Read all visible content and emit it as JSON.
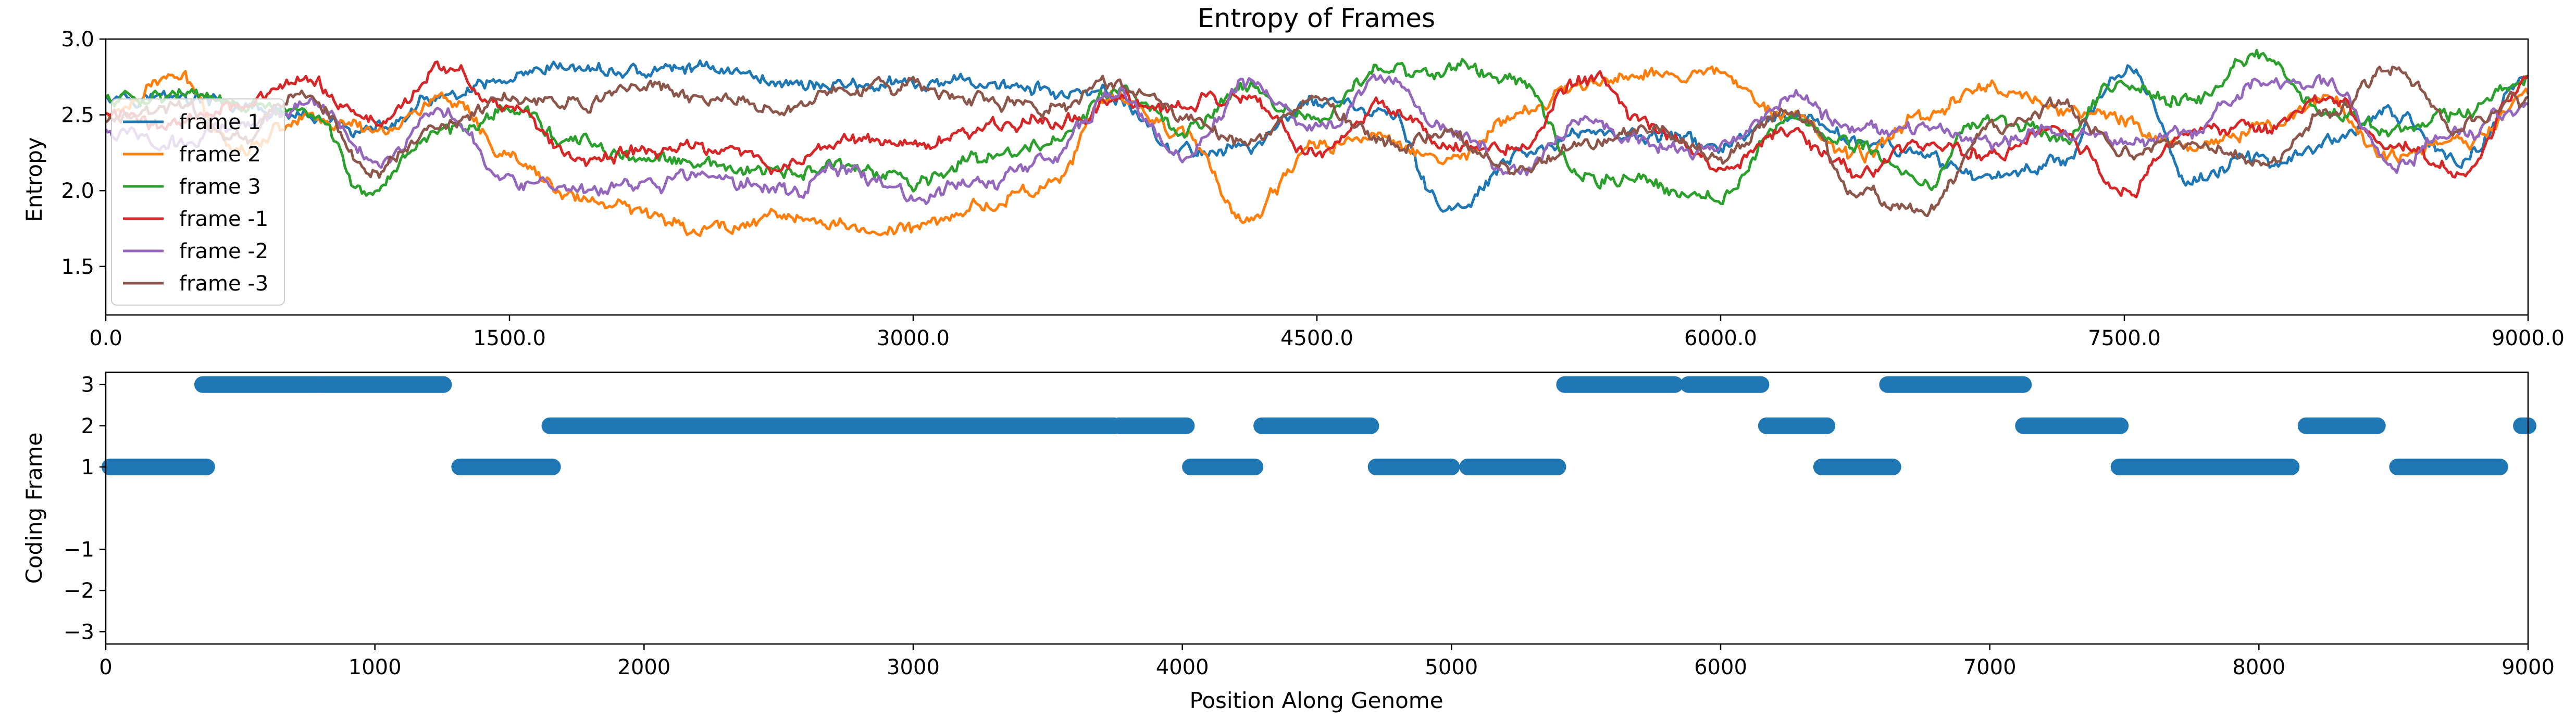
{
  "chart_data": [
    {
      "type": "line",
      "title": "Entropy of Frames",
      "xlabel": "",
      "ylabel": "Entropy",
      "xlim": [
        0,
        9000
      ],
      "ylim": [
        1.18,
        3.0
      ],
      "xticks": [
        0,
        1500,
        3000,
        4500,
        6000,
        7500,
        9000
      ],
      "xtick_labels": [
        "0.0",
        "1500.0",
        "3000.0",
        "4500.0",
        "6000.0",
        "7500.0",
        "9000.0"
      ],
      "yticks": [
        1.5,
        2.0,
        2.5,
        3.0
      ],
      "ytick_labels": [
        "1.5",
        "2.0",
        "2.5",
        "3.0"
      ],
      "legend_position": "upper-left",
      "grid": false,
      "series": [
        {
          "name": "frame 1",
          "color": "#1f77b4",
          "x": [
            0,
            250,
            500,
            750,
            1000,
            1250,
            1500,
            1750,
            2000,
            2250,
            2500,
            2750,
            3000,
            3250,
            3500,
            3750,
            4000,
            4250,
            4500,
            4750,
            5000,
            5250,
            5500,
            5750,
            6000,
            6250,
            6500,
            6750,
            7000,
            7250,
            7500,
            7750,
            8000,
            8250,
            8500,
            8750,
            9000
          ],
          "y": [
            2.65,
            2.62,
            2.55,
            2.45,
            2.4,
            2.6,
            2.7,
            2.8,
            2.78,
            2.82,
            2.72,
            2.7,
            2.68,
            2.72,
            2.65,
            2.6,
            2.25,
            2.3,
            2.6,
            2.5,
            1.85,
            2.2,
            2.4,
            2.35,
            2.3,
            2.45,
            2.35,
            2.2,
            2.1,
            2.2,
            2.8,
            2.1,
            2.2,
            2.3,
            2.5,
            2.2,
            2.75
          ]
        },
        {
          "name": "frame 2",
          "color": "#ff7f0e",
          "x": [
            0,
            250,
            500,
            750,
            1000,
            1250,
            1500,
            1750,
            2000,
            2250,
            2500,
            2750,
            3000,
            3250,
            3500,
            3750,
            4000,
            4250,
            4500,
            4750,
            5000,
            5250,
            5500,
            5750,
            6000,
            6250,
            6500,
            6750,
            7000,
            7250,
            7500,
            7750,
            8000,
            8250,
            8500,
            8750,
            9000
          ],
          "y": [
            2.5,
            2.75,
            2.3,
            2.5,
            2.4,
            2.6,
            2.2,
            1.95,
            1.85,
            1.75,
            1.85,
            1.75,
            1.75,
            1.9,
            2.05,
            2.6,
            2.4,
            1.8,
            2.3,
            2.35,
            2.2,
            2.5,
            2.7,
            2.8,
            2.75,
            2.55,
            2.2,
            2.5,
            2.7,
            2.55,
            2.45,
            2.3,
            2.4,
            2.6,
            2.2,
            2.3,
            2.65
          ]
        },
        {
          "name": "frame 3",
          "color": "#2ca02c",
          "x": [
            0,
            250,
            500,
            750,
            1000,
            1250,
            1500,
            1750,
            2000,
            2250,
            2500,
            2750,
            3000,
            3250,
            3500,
            3750,
            4000,
            4250,
            4500,
            4750,
            5000,
            5250,
            5500,
            5750,
            6000,
            6250,
            6500,
            6750,
            7000,
            7250,
            7500,
            7750,
            8000,
            8250,
            8500,
            8750,
            9000
          ],
          "y": [
            2.6,
            2.65,
            2.55,
            2.5,
            1.95,
            2.4,
            2.55,
            2.3,
            2.2,
            2.15,
            2.1,
            2.15,
            2.05,
            2.2,
            2.3,
            2.65,
            2.4,
            2.7,
            2.45,
            2.8,
            2.8,
            2.75,
            2.1,
            2.05,
            1.95,
            2.5,
            2.3,
            2.05,
            2.5,
            2.35,
            2.7,
            2.6,
            2.9,
            2.5,
            2.4,
            2.5,
            2.75
          ]
        },
        {
          "name": "frame -1",
          "color": "#d62728",
          "x": [
            0,
            250,
            500,
            750,
            1000,
            1250,
            1500,
            1750,
            2000,
            2250,
            2500,
            2750,
            3000,
            3250,
            3500,
            3750,
            4000,
            4250,
            4500,
            4750,
            5000,
            5250,
            5500,
            5750,
            6000,
            6250,
            6500,
            6750,
            7000,
            7250,
            7500,
            7750,
            8000,
            8250,
            8500,
            8750,
            9000
          ],
          "y": [
            2.5,
            2.45,
            2.6,
            2.7,
            2.45,
            2.8,
            2.55,
            2.2,
            2.25,
            2.3,
            2.15,
            2.35,
            2.3,
            2.4,
            2.45,
            2.6,
            2.55,
            2.6,
            2.2,
            2.55,
            2.3,
            2.3,
            2.75,
            2.4,
            2.1,
            2.4,
            2.1,
            2.3,
            2.25,
            2.4,
            2.0,
            2.4,
            2.4,
            2.6,
            2.3,
            2.1,
            2.7
          ]
        },
        {
          "name": "frame -2",
          "color": "#9467bd",
          "x": [
            0,
            250,
            500,
            750,
            1000,
            1250,
            1500,
            1750,
            2000,
            2250,
            2500,
            2750,
            3000,
            3250,
            3500,
            3750,
            4000,
            4250,
            4500,
            4750,
            5000,
            5250,
            5500,
            5750,
            6000,
            6250,
            6500,
            6750,
            7000,
            7250,
            7500,
            7750,
            8000,
            8250,
            8500,
            8750,
            9000
          ],
          "y": [
            2.4,
            2.3,
            2.45,
            2.6,
            2.2,
            2.55,
            2.1,
            1.95,
            2.05,
            2.1,
            2.0,
            2.15,
            1.95,
            2.05,
            2.2,
            2.65,
            2.2,
            2.7,
            2.4,
            2.75,
            2.4,
            2.1,
            2.45,
            2.3,
            2.25,
            2.6,
            2.45,
            2.4,
            2.3,
            2.4,
            2.3,
            2.4,
            2.75,
            2.7,
            2.2,
            2.4,
            2.55
          ]
        },
        {
          "name": "frame -3",
          "color": "#8c564b",
          "x": [
            0,
            250,
            500,
            750,
            1000,
            1250,
            1500,
            1750,
            2000,
            2250,
            2500,
            2750,
            3000,
            3250,
            3500,
            3750,
            4000,
            4250,
            4500,
            4750,
            5000,
            5250,
            5500,
            5750,
            6000,
            6250,
            6500,
            6750,
            7000,
            7250,
            7500,
            7750,
            8000,
            8250,
            8500,
            8750,
            9000
          ],
          "y": [
            2.45,
            2.55,
            2.35,
            2.65,
            2.1,
            2.45,
            2.6,
            2.55,
            2.7,
            2.6,
            2.55,
            2.65,
            2.7,
            2.6,
            2.55,
            2.7,
            2.5,
            2.3,
            2.6,
            2.3,
            2.35,
            2.1,
            2.3,
            2.45,
            2.2,
            2.55,
            2.0,
            1.85,
            2.4,
            2.55,
            2.25,
            2.3,
            2.2,
            2.5,
            2.8,
            2.4,
            2.6
          ]
        }
      ]
    },
    {
      "type": "scatter",
      "title": "",
      "xlabel": "Position Along Genome",
      "ylabel": "Coding Frame",
      "xlim": [
        0,
        9000
      ],
      "ylim": [
        -3.3,
        3.3
      ],
      "xticks": [
        0,
        1000,
        2000,
        3000,
        4000,
        5000,
        6000,
        7000,
        8000,
        9000
      ],
      "xtick_labels": [
        "0",
        "1000",
        "2000",
        "3000",
        "4000",
        "5000",
        "6000",
        "7000",
        "8000",
        "9000"
      ],
      "yticks": [
        -3,
        -2,
        -1,
        1,
        2,
        3
      ],
      "ytick_labels": [
        "−3",
        "−2",
        "−1",
        "1",
        "2",
        "3"
      ],
      "grid": false,
      "color": "#1f77b4",
      "segments": [
        {
          "frame": 1,
          "start": 0,
          "end": 375
        },
        {
          "frame": 3,
          "start": 360,
          "end": 785
        },
        {
          "frame": 3,
          "start": 790,
          "end": 1255
        },
        {
          "frame": 1,
          "start": 1315,
          "end": 1660
        },
        {
          "frame": 2,
          "start": 1650,
          "end": 3745
        },
        {
          "frame": 2,
          "start": 3765,
          "end": 4015
        },
        {
          "frame": 1,
          "start": 4030,
          "end": 4270
        },
        {
          "frame": 2,
          "start": 4295,
          "end": 4700
        },
        {
          "frame": 1,
          "start": 4720,
          "end": 5000
        },
        {
          "frame": 1,
          "start": 5060,
          "end": 5395
        },
        {
          "frame": 3,
          "start": 5420,
          "end": 5830
        },
        {
          "frame": 3,
          "start": 5880,
          "end": 6150
        },
        {
          "frame": 2,
          "start": 6170,
          "end": 6395
        },
        {
          "frame": 1,
          "start": 6375,
          "end": 6640
        },
        {
          "frame": 3,
          "start": 6620,
          "end": 7125
        },
        {
          "frame": 2,
          "start": 7125,
          "end": 7485
        },
        {
          "frame": 1,
          "start": 7480,
          "end": 8120
        },
        {
          "frame": 2,
          "start": 8175,
          "end": 8440
        },
        {
          "frame": 1,
          "start": 8515,
          "end": 8895
        },
        {
          "frame": 2,
          "start": 8975,
          "end": 9000
        }
      ]
    }
  ]
}
